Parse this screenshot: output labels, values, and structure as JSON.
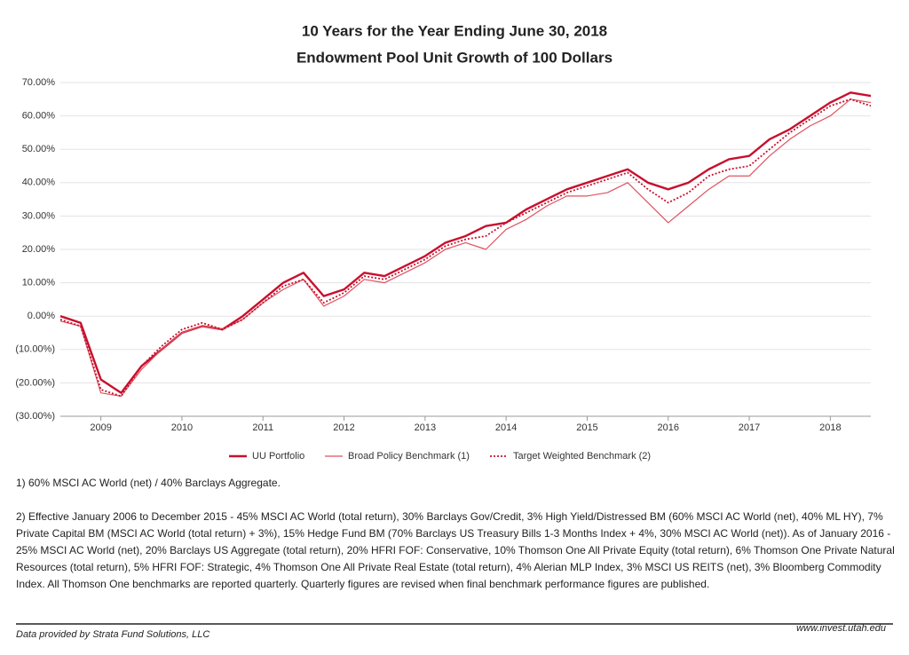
{
  "chart_data": {
    "type": "line",
    "title": "10 Years for the Year Ending June 30, 2018",
    "subtitle": "Endowment Pool Unit Growth of 100 Dollars",
    "x": [
      2008.5,
      2008.75,
      2009.0,
      2009.25,
      2009.5,
      2009.75,
      2010.0,
      2010.25,
      2010.5,
      2010.75,
      2011.0,
      2011.25,
      2011.5,
      2011.75,
      2012.0,
      2012.25,
      2012.5,
      2012.75,
      2013.0,
      2013.25,
      2013.5,
      2013.75,
      2014.0,
      2014.25,
      2014.5,
      2014.75,
      2015.0,
      2015.25,
      2015.5,
      2015.75,
      2016.0,
      2016.25,
      2016.5,
      2016.75,
      2017.0,
      2017.25,
      2017.5,
      2017.75,
      2018.0,
      2018.25,
      2018.5
    ],
    "series": [
      {
        "name": "UU Portfolio",
        "color": "#c8102e",
        "style": "solid",
        "width": 2.4,
        "values": [
          0,
          -2,
          -19,
          -23,
          -15,
          -10,
          -5,
          -3,
          -4,
          0,
          5,
          10,
          13,
          6,
          8,
          13,
          12,
          15,
          18,
          22,
          24,
          27,
          28,
          32,
          35,
          38,
          40,
          42,
          44,
          40,
          38,
          40,
          44,
          47,
          48,
          53,
          56,
          60,
          64,
          67,
          66
        ]
      },
      {
        "name": "Broad Policy Benchmark (1)",
        "color": "#e0525e",
        "style": "solid",
        "width": 1.2,
        "values": [
          -1.5,
          -3,
          -23,
          -24,
          -16,
          -10,
          -5,
          -3,
          -4,
          -1,
          4,
          8,
          11,
          3,
          6,
          11,
          10,
          13,
          16,
          20,
          22,
          20,
          26,
          29,
          33,
          36,
          36,
          37,
          40,
          34,
          28,
          33,
          38,
          42,
          42,
          48,
          53,
          57,
          60,
          65,
          64
        ]
      },
      {
        "name": "Target Weighted Benchmark (2)",
        "color": "#c8102e",
        "style": "dotted",
        "width": 1.8,
        "values": [
          -1,
          -3,
          -22,
          -24,
          -15,
          -9,
          -4,
          -2,
          -4,
          -1,
          4,
          9,
          11,
          4,
          7,
          12,
          11,
          14,
          17,
          21,
          23,
          24,
          28,
          31,
          34,
          37,
          39,
          41,
          43,
          38,
          34,
          37,
          42,
          44,
          45,
          50,
          55,
          59,
          63,
          65,
          63
        ]
      }
    ],
    "xlim": [
      2008.5,
      2018.5
    ],
    "xticks": [
      2009,
      2010,
      2011,
      2012,
      2013,
      2014,
      2015,
      2016,
      2017,
      2018
    ],
    "ylim": [
      -30,
      70
    ],
    "yticks": [
      {
        "value": -30,
        "label": "(30.00%)"
      },
      {
        "value": -20,
        "label": "(20.00%)"
      },
      {
        "value": -10,
        "label": "(10.00%)"
      },
      {
        "value": 0,
        "label": "0.00%"
      },
      {
        "value": 10,
        "label": "10.00%"
      },
      {
        "value": 20,
        "label": "20.00%"
      },
      {
        "value": 30,
        "label": "30.00%"
      },
      {
        "value": 40,
        "label": "40.00%"
      },
      {
        "value": 50,
        "label": "50.00%"
      },
      {
        "value": 60,
        "label": "60.00%"
      },
      {
        "value": 70,
        "label": "70.00%"
      }
    ],
    "grid": true,
    "legend": "bottom"
  },
  "notes": [
    "1) 60% MSCI AC World (net) / 40% Barclays Aggregate.",
    "2) Effective January 2006 to December 2015 - 45% MSCI AC World (total return), 30% Barclays Gov/Credit, 3% High Yield/Distressed BM (60% MSCI AC World (net), 40% ML HY), 7% Private Capital BM (MSCI AC World (total return) + 3%), 15% Hedge Fund BM (70% Barclays US Treasury Bills 1-3 Months Index + 4%, 30% MSCI AC World (net)). As of January 2016 - 25% MSCI AC World (net), 20% Barclays US Aggregate (total return), 20% HFRI FOF: Conservative, 10% Thomson One All Private Equity (total return), 6% Thomson One Private Natural Resources (total return), 5% HFRI FOF: Strategic, 4% Thomson One All Private Real Estate (total return), 4% Alerian MLP Index, 3% MSCI US REITS (net), 3% Bloomberg Commodity Index. All Thomson One benchmarks are reported quarterly. Quarterly figures are revised when final benchmark performance figures are published."
  ],
  "footer": {
    "source": "Data provided by Strata Fund Solutions, LLC",
    "url": "www.invest.utah.edu"
  }
}
